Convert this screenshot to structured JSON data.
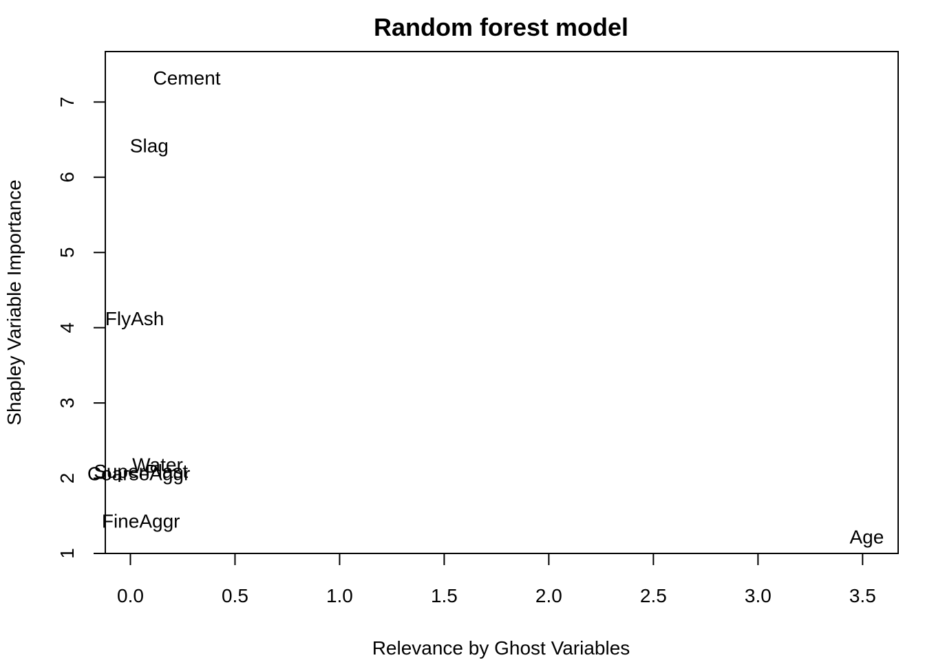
{
  "chart_data": {
    "type": "scatter",
    "title": "Random forest model",
    "xlabel": "Relevance by Ghost Variables",
    "ylabel": "Shapley Variable Importance",
    "xlim": [
      -0.12,
      3.67
    ],
    "ylim": [
      1.0,
      7.67
    ],
    "x_ticks": [
      0.0,
      0.5,
      1.0,
      1.5,
      2.0,
      2.5,
      3.0,
      3.5
    ],
    "x_tick_labels": [
      "0.0",
      "0.5",
      "1.0",
      "1.5",
      "2.0",
      "2.5",
      "3.0",
      "3.5"
    ],
    "y_ticks": [
      1,
      2,
      3,
      4,
      5,
      6,
      7
    ],
    "y_tick_labels": [
      "1",
      "2",
      "3",
      "4",
      "5",
      "6",
      "7"
    ],
    "grid": false,
    "marker": "text",
    "points": [
      {
        "label": "Cement",
        "x": 0.27,
        "y": 7.32
      },
      {
        "label": "Slag",
        "x": 0.09,
        "y": 6.42
      },
      {
        "label": "FlyAsh",
        "x": 0.02,
        "y": 4.12
      },
      {
        "label": "Water",
        "x": 0.13,
        "y": 2.18
      },
      {
        "label": "SuperPlast",
        "x": 0.05,
        "y": 2.09
      },
      {
        "label": "CoarseAggr",
        "x": 0.04,
        "y": 2.06
      },
      {
        "label": "FineAggr",
        "x": 0.05,
        "y": 1.43
      },
      {
        "label": "Age",
        "x": 3.52,
        "y": 1.22
      }
    ],
    "colors": {
      "text": "#000000",
      "axis": "#000000",
      "background": "#ffffff"
    }
  }
}
